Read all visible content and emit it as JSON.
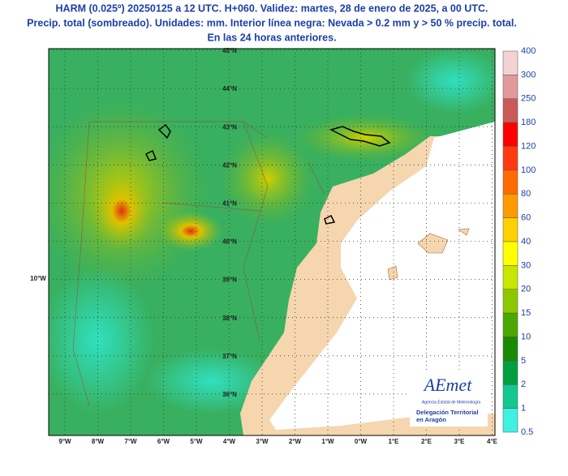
{
  "header": {
    "lines": [
      "HARM (0.025º) 20250125 a 12 UTC. H+060. Validez: martes, 28 de enero de 2025, a 00 UTC.",
      "Precip. total (sombreado). Unidades: mm. Interior línea negra: Nevada > 0.2 mm y > 50 % precip. total.",
      "En las 24 horas anteriores."
    ]
  },
  "map": {
    "lat_labels": [
      "45°N",
      "44°N",
      "43°N",
      "42°N",
      "41°N",
      "40°N",
      "39°N",
      "38°N",
      "37°N",
      "36°N"
    ],
    "lon_labels": [
      "9°W",
      "8°W",
      "7°W",
      "6°W",
      "5°W",
      "4°W",
      "3°W",
      "2°W",
      "1°W",
      "0°W",
      "1°E",
      "2°E",
      "3°E",
      "4°E"
    ],
    "left_label": "10°W"
  },
  "colorbar": {
    "labels": [
      "400",
      "300",
      "250",
      "180",
      "120",
      "100",
      "80",
      "60",
      "40",
      "30",
      "20",
      "15",
      "10",
      "5",
      "2",
      "1",
      "0.5"
    ],
    "colors": [
      "#f2d2d2",
      "#e09a9a",
      "#c85a5a",
      "#ff0000",
      "#ff3a10",
      "#ff6a00",
      "#ff9a00",
      "#ffd000",
      "#ffff00",
      "#c8e600",
      "#8cc800",
      "#4ca800",
      "#1a8a00",
      "#00a040",
      "#10c890",
      "#40f0e0"
    ]
  },
  "logo": {
    "name": "AEmet",
    "agency": "Agencia Estatal de Meteorología",
    "office": [
      "Delegación Territorial",
      "en Aragón"
    ]
  }
}
